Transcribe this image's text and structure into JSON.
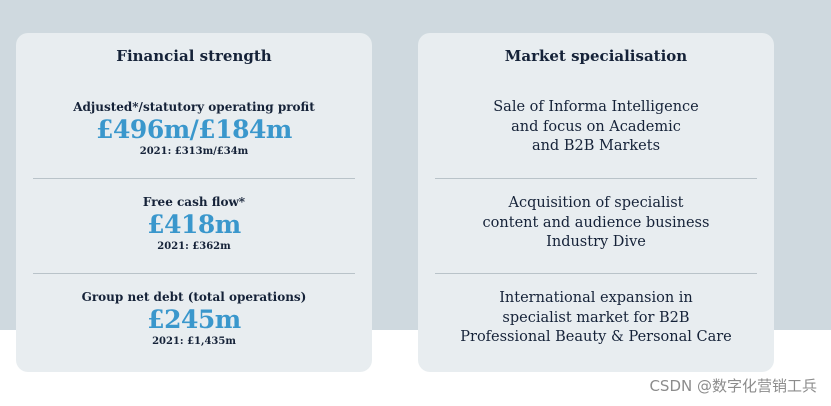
{
  "financial": {
    "title": "Financial strength",
    "metrics": [
      {
        "label": "Adjusted*/statutory operating profit",
        "value": "£496m/£184m",
        "prior": "2021: £313m/£34m"
      },
      {
        "label": "Free cash flow*",
        "value": "£418m",
        "prior": "2021: £362m"
      },
      {
        "label": "Group net debt (total operations)",
        "value": "£245m",
        "prior": "2021: £1,435m"
      }
    ]
  },
  "market": {
    "title": "Market specialisation",
    "items": [
      {
        "lines": [
          "Sale of Informa Intelligence",
          "and focus on Academic",
          "and B2B Markets"
        ]
      },
      {
        "lines": [
          "Acquisition of specialist",
          "content and audience business",
          "Industry Dive"
        ]
      },
      {
        "lines": [
          "International expansion in",
          "specialist market for B2B",
          "Professional Beauty & Personal Care"
        ]
      }
    ]
  },
  "watermark": "CSDN @数字化营销工兵"
}
